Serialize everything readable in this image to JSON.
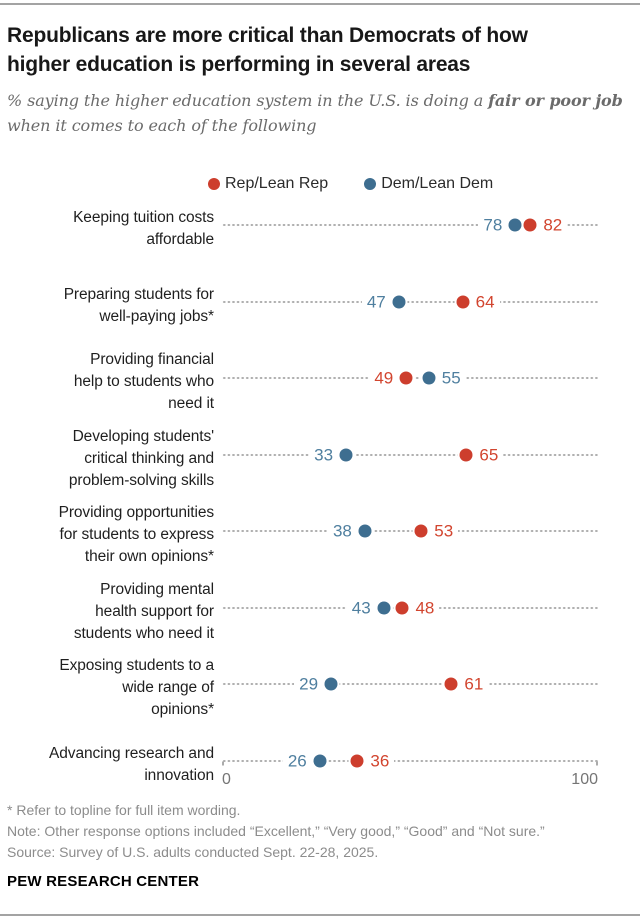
{
  "header": {
    "title_lines": [
      "Republicans are more critical than Democrats of how",
      "higher education is performing in several areas"
    ],
    "subtitle_prefix": "% saying the higher education system in the U.S. is doing a ",
    "subtitle_bold": "fair or poor job",
    "subtitle_line2": "when it comes to each of the following"
  },
  "colors": {
    "background": "#ffffff",
    "rule": "#a3a3a3",
    "dotted_line": "#b0b0b0",
    "axis_text": "#757575"
  },
  "chart_data": {
    "type": "scatter",
    "subtype": "dot-plot",
    "categories": [
      "Keeping tuition costs affordable",
      "Preparing students for well-paying jobs*",
      "Providing financial help to students who need it",
      "Developing students' critical thinking and problem-solving skills",
      "Providing opportunities for students to express their own opinions*",
      "Providing mental health support for students who need it",
      "Exposing students to a wide range of opinions*",
      "Advancing research and innovation"
    ],
    "category_lines": [
      [
        "Keeping tuition costs",
        "affordable"
      ],
      [
        "Preparing students for",
        "well-paying jobs*"
      ],
      [
        "Providing financial",
        "help to students who",
        "need it"
      ],
      [
        "Developing students'",
        "critical thinking and",
        "problem-solving skills"
      ],
      [
        "Providing opportunities",
        "for students to express",
        "their own opinions*"
      ],
      [
        "Providing mental",
        "health support for",
        "students who need it"
      ],
      [
        "Exposing students to a",
        "wide range of",
        "opinions*"
      ],
      [
        "Advancing research and",
        "innovation"
      ]
    ],
    "series": [
      {
        "name": "Rep/Lean Rep",
        "color": "#cd3e2d",
        "text_color": "#d2452f",
        "values": [
          82,
          64,
          49,
          65,
          53,
          48,
          61,
          36
        ]
      },
      {
        "name": "Dem/Lean Dem",
        "color": "#3e6e90",
        "text_color": "#4f7f9f",
        "values": [
          78,
          47,
          55,
          33,
          38,
          43,
          29,
          26
        ]
      }
    ],
    "xlim": [
      0,
      100
    ],
    "axis_ticks": [
      "0",
      "100"
    ],
    "legend_position": "top",
    "grid": "dotted-leader-lines"
  },
  "footer": {
    "footnote": "* Refer to topline for full item wording.",
    "note": "Note: Other response options included “Excellent,” “Very good,” “Good” and “Not sure.”",
    "source": "Source: Survey of U.S. adults conducted Sept. 22-28, 2025.",
    "brand": "PEW RESEARCH CENTER"
  }
}
